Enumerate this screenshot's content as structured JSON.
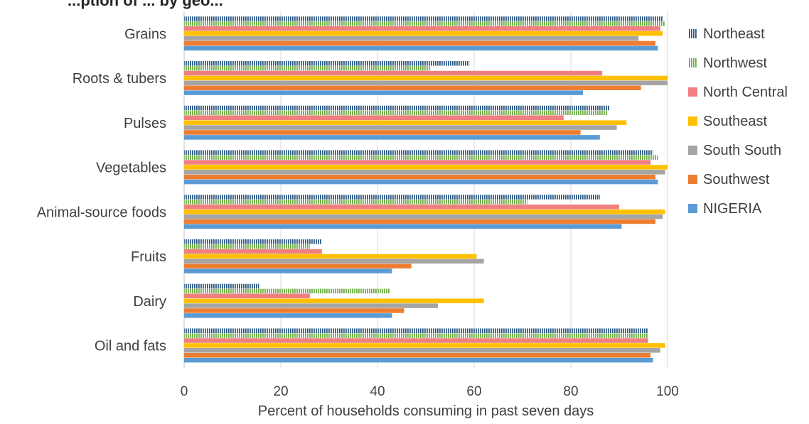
{
  "chart_data": {
    "type": "bar",
    "orientation": "horizontal",
    "title": "...ption of ... by geo...",
    "xlabel": "Percent of households consuming in past seven days",
    "ylabel": "",
    "xlim": [
      0,
      100
    ],
    "xticks": [
      0,
      20,
      40,
      60,
      80,
      100
    ],
    "grid": true,
    "legend_position": "right",
    "categories": [
      "Grains",
      "Roots & tubers",
      "Pulses",
      "Vegetables",
      "Animal-source foods",
      "Fruits",
      "Dairy",
      "Oil and fats"
    ],
    "series": [
      {
        "name": "Northeast",
        "color": "#2e5a87",
        "pattern": "vertical-stripes",
        "values": [
          99,
          59,
          88,
          97,
          86,
          28.5,
          15.5,
          96
        ]
      },
      {
        "name": "Northwest",
        "color": "#70ad47",
        "pattern": "vertical-stripes",
        "values": [
          99.5,
          51,
          87.5,
          98,
          71,
          26,
          42.5,
          96
        ]
      },
      {
        "name": "North Central",
        "color": "#f08080",
        "pattern": "solid",
        "values": [
          98.5,
          86.5,
          78.5,
          96.5,
          90,
          28.5,
          26,
          96
        ]
      },
      {
        "name": "Southeast",
        "color": "#ffc000",
        "pattern": "solid",
        "values": [
          99,
          100,
          91.5,
          100,
          99.5,
          60.5,
          62,
          99.5
        ]
      },
      {
        "name": "South South",
        "color": "#a5a5a5",
        "pattern": "solid",
        "values": [
          94,
          100,
          89.5,
          99.5,
          99,
          62,
          52.5,
          98.5
        ]
      },
      {
        "name": "Southwest",
        "color": "#ed7d31",
        "pattern": "solid",
        "values": [
          97.5,
          94.5,
          82,
          97.5,
          97.5,
          47,
          45.5,
          96.5
        ]
      },
      {
        "name": "NIGERIA",
        "color": "#5b9bd5",
        "pattern": "solid",
        "values": [
          98,
          82.5,
          86,
          98,
          90.5,
          43,
          43,
          97
        ]
      }
    ]
  }
}
